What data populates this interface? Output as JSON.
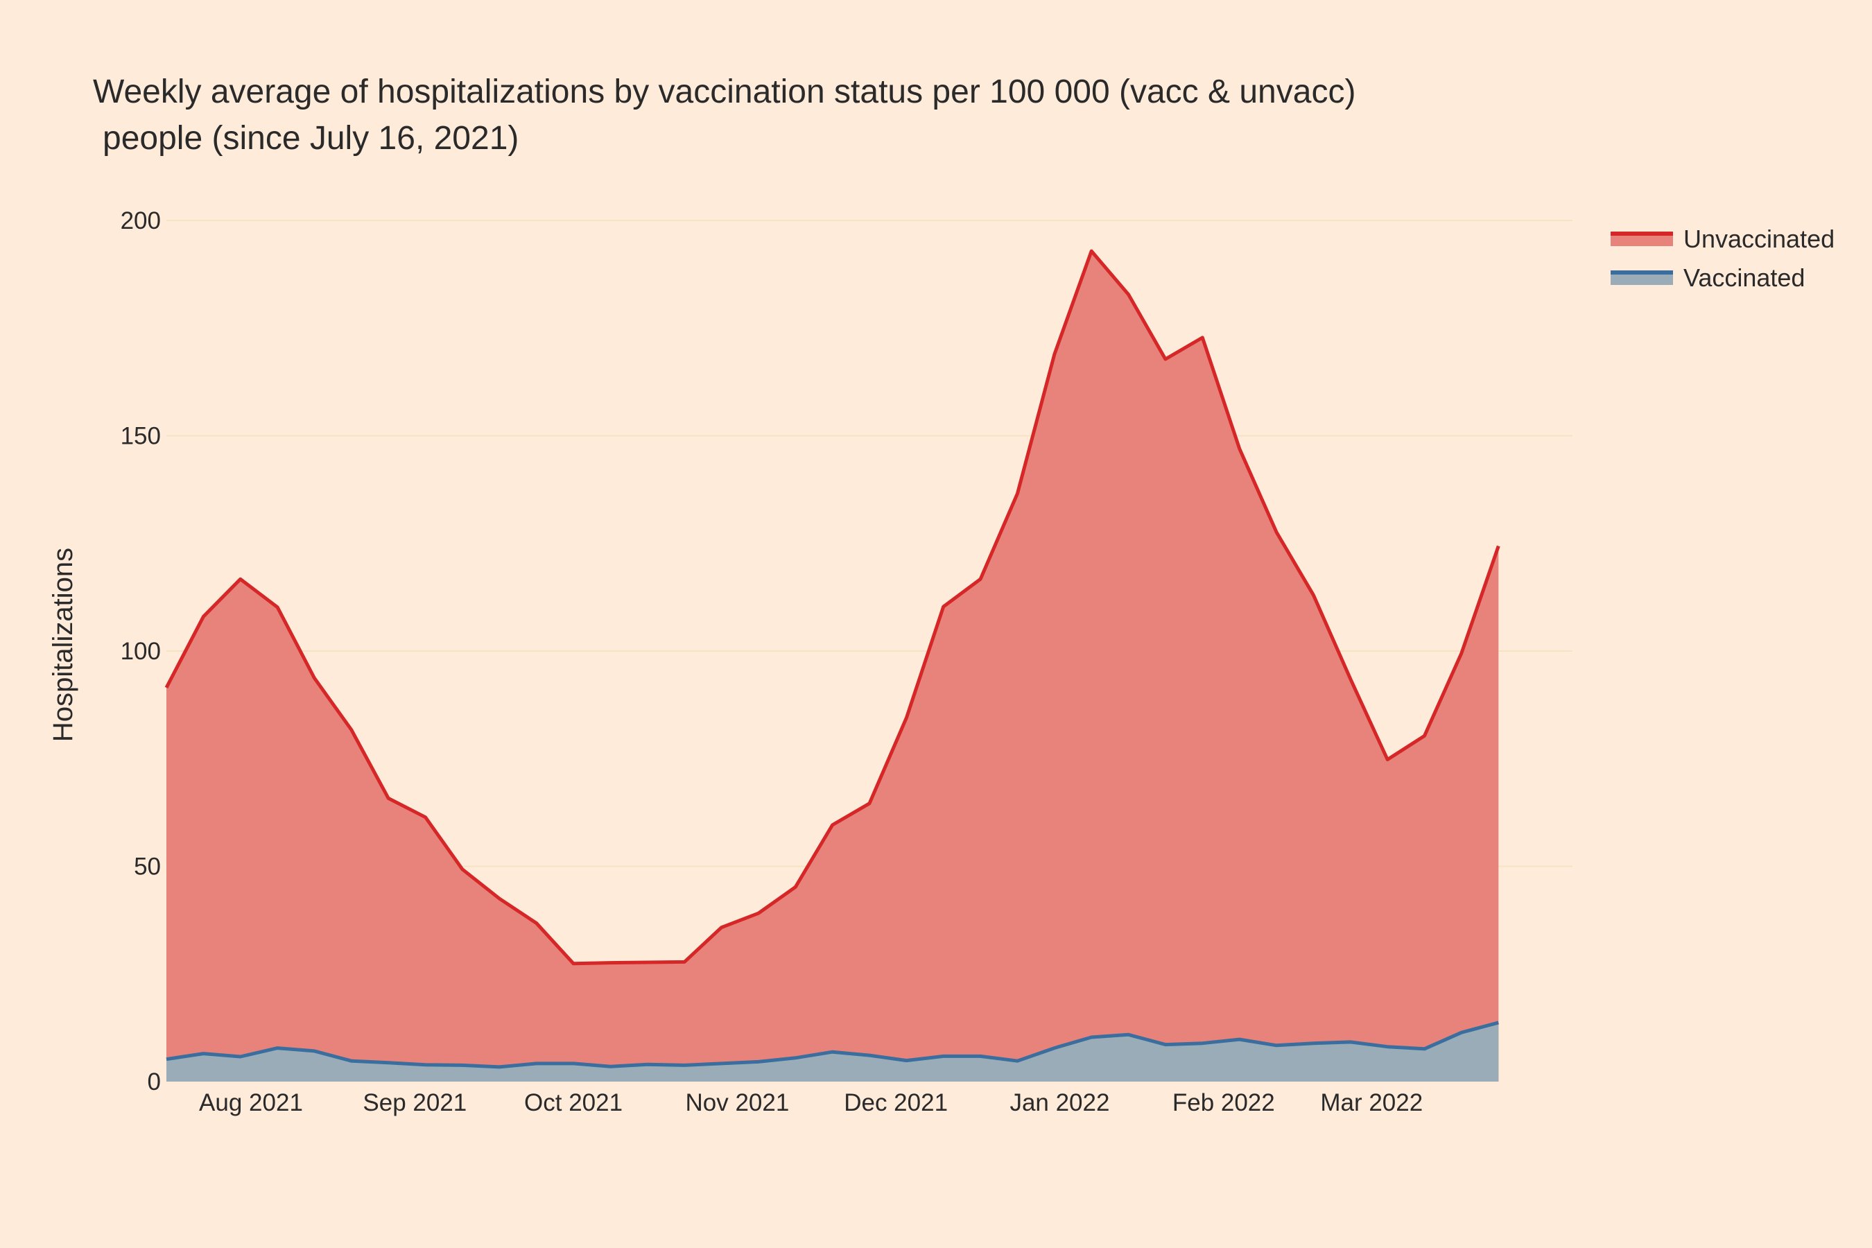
{
  "chart_data": {
    "type": "area",
    "title": "Weekly average of hospitalizations by vaccination status per 100 000 (vacc & unvacc)",
    "title_line2": "people (since July 16, 2021)",
    "xlabel": "",
    "ylabel": "Hospitalizations",
    "ylim": [
      0,
      200
    ],
    "yticks": [
      0,
      50,
      100,
      150,
      200
    ],
    "xlim": [
      "2021-07-16",
      "2022-04-08"
    ],
    "xticks": [
      {
        "date": "2021-08-01",
        "label": "Aug 2021"
      },
      {
        "date": "2021-09-01",
        "label": "Sep 2021"
      },
      {
        "date": "2021-10-01",
        "label": "Oct 2021"
      },
      {
        "date": "2021-11-01",
        "label": "Nov 2021"
      },
      {
        "date": "2021-12-01",
        "label": "Dec 2021"
      },
      {
        "date": "2022-01-01",
        "label": "Jan 2022"
      },
      {
        "date": "2022-02-01",
        "label": "Feb 2022"
      },
      {
        "date": "2022-03-01",
        "label": "Mar 2022"
      }
    ],
    "grid": true,
    "legend_position": "top-right",
    "x": [
      "2021-07-16",
      "2021-07-23",
      "2021-07-30",
      "2021-08-06",
      "2021-08-13",
      "2021-08-20",
      "2021-08-27",
      "2021-09-03",
      "2021-09-10",
      "2021-09-17",
      "2021-09-24",
      "2021-10-01",
      "2021-10-08",
      "2021-10-15",
      "2021-10-22",
      "2021-10-29",
      "2021-11-05",
      "2021-11-12",
      "2021-11-19",
      "2021-11-26",
      "2021-12-03",
      "2021-12-10",
      "2021-12-17",
      "2021-12-24",
      "2021-12-31",
      "2022-01-07",
      "2022-01-14",
      "2022-01-21",
      "2022-01-28",
      "2022-02-04",
      "2022-02-11",
      "2022-02-18",
      "2022-02-25",
      "2022-03-04",
      "2022-03-11",
      "2022-03-18",
      "2022-03-25",
      "2022-04-01",
      "2022-04-08"
    ],
    "series": [
      {
        "name": "Unvaccinated",
        "line_color": "#D62728",
        "fill_color": "#E8837B",
        "values": [
          91.5,
          108,
          116.7,
          110.2,
          93.7,
          81.7,
          65.8,
          61.4,
          49.3,
          42.5,
          36.8,
          27.4,
          27.6,
          27.7,
          27.8,
          35.8,
          39.1,
          45.2,
          59.6,
          64.6,
          84.5,
          110.3,
          116.7,
          136.6,
          168.9,
          192.9,
          182.8,
          167.8,
          172.8,
          147,
          127.6,
          113,
          93.5,
          74.8,
          80.3,
          99.5,
          124.4,
          null,
          null
        ]
      },
      {
        "name": "Vaccinated",
        "line_color": "#3A6E9E",
        "fill_color": "#9AACB8",
        "values": [
          5.2,
          6.5,
          5.8,
          7.8,
          7.1,
          4.8,
          4.4,
          3.9,
          3.8,
          3.4,
          4.2,
          4.2,
          3.5,
          4,
          3.8,
          4.2,
          4.6,
          5.5,
          6.9,
          6.1,
          4.9,
          5.9,
          5.9,
          4.8,
          7.8,
          10.3,
          10.9,
          8.6,
          8.9,
          9.8,
          8.4,
          8.9,
          9.2,
          8.1,
          7.6,
          11.4,
          13.7,
          null,
          null
        ]
      }
    ]
  }
}
